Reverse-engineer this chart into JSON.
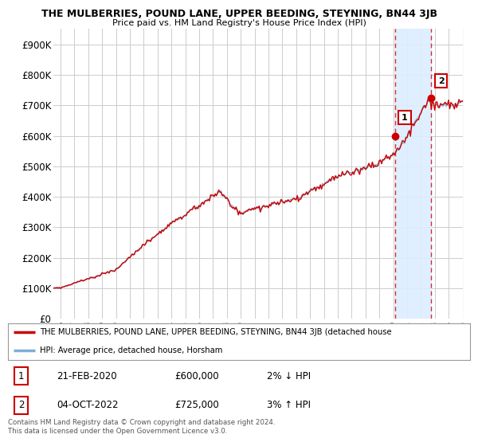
{
  "title": "THE MULBERRIES, POUND LANE, UPPER BEEDING, STEYNING, BN44 3JB",
  "subtitle": "Price paid vs. HM Land Registry's House Price Index (HPI)",
  "ylabel_ticks": [
    "£0",
    "£100K",
    "£200K",
    "£300K",
    "£400K",
    "£500K",
    "£600K",
    "£700K",
    "£800K",
    "£900K"
  ],
  "ytick_values": [
    0,
    100000,
    200000,
    300000,
    400000,
    500000,
    600000,
    700000,
    800000,
    900000
  ],
  "ylim": [
    0,
    950000
  ],
  "xlim_start": 1995.5,
  "xlim_end": 2025.5,
  "sale1_x": 2020.13,
  "sale1_y": 600000,
  "sale1_label": "1",
  "sale2_x": 2022.75,
  "sale2_y": 725000,
  "sale2_label": "2",
  "hpi_color": "#7bafd4",
  "price_color": "#cc0000",
  "highlight_color": "#ddeeff",
  "highlight_xstart": 2020.13,
  "highlight_xend": 2022.75,
  "legend_line1": "THE MULBERRIES, POUND LANE, UPPER BEEDING, STEYNING, BN44 3JB (detached house",
  "legend_line2": "HPI: Average price, detached house, Horsham",
  "table_row1": [
    "1",
    "21-FEB-2020",
    "£600,000",
    "2% ↓ HPI"
  ],
  "table_row2": [
    "2",
    "04-OCT-2022",
    "£725,000",
    "3% ↑ HPI"
  ],
  "footer": "Contains HM Land Registry data © Crown copyright and database right 2024.\nThis data is licensed under the Open Government Licence v3.0.",
  "background_color": "#ffffff",
  "grid_color": "#cccccc",
  "hatch_color": "#cccccc"
}
